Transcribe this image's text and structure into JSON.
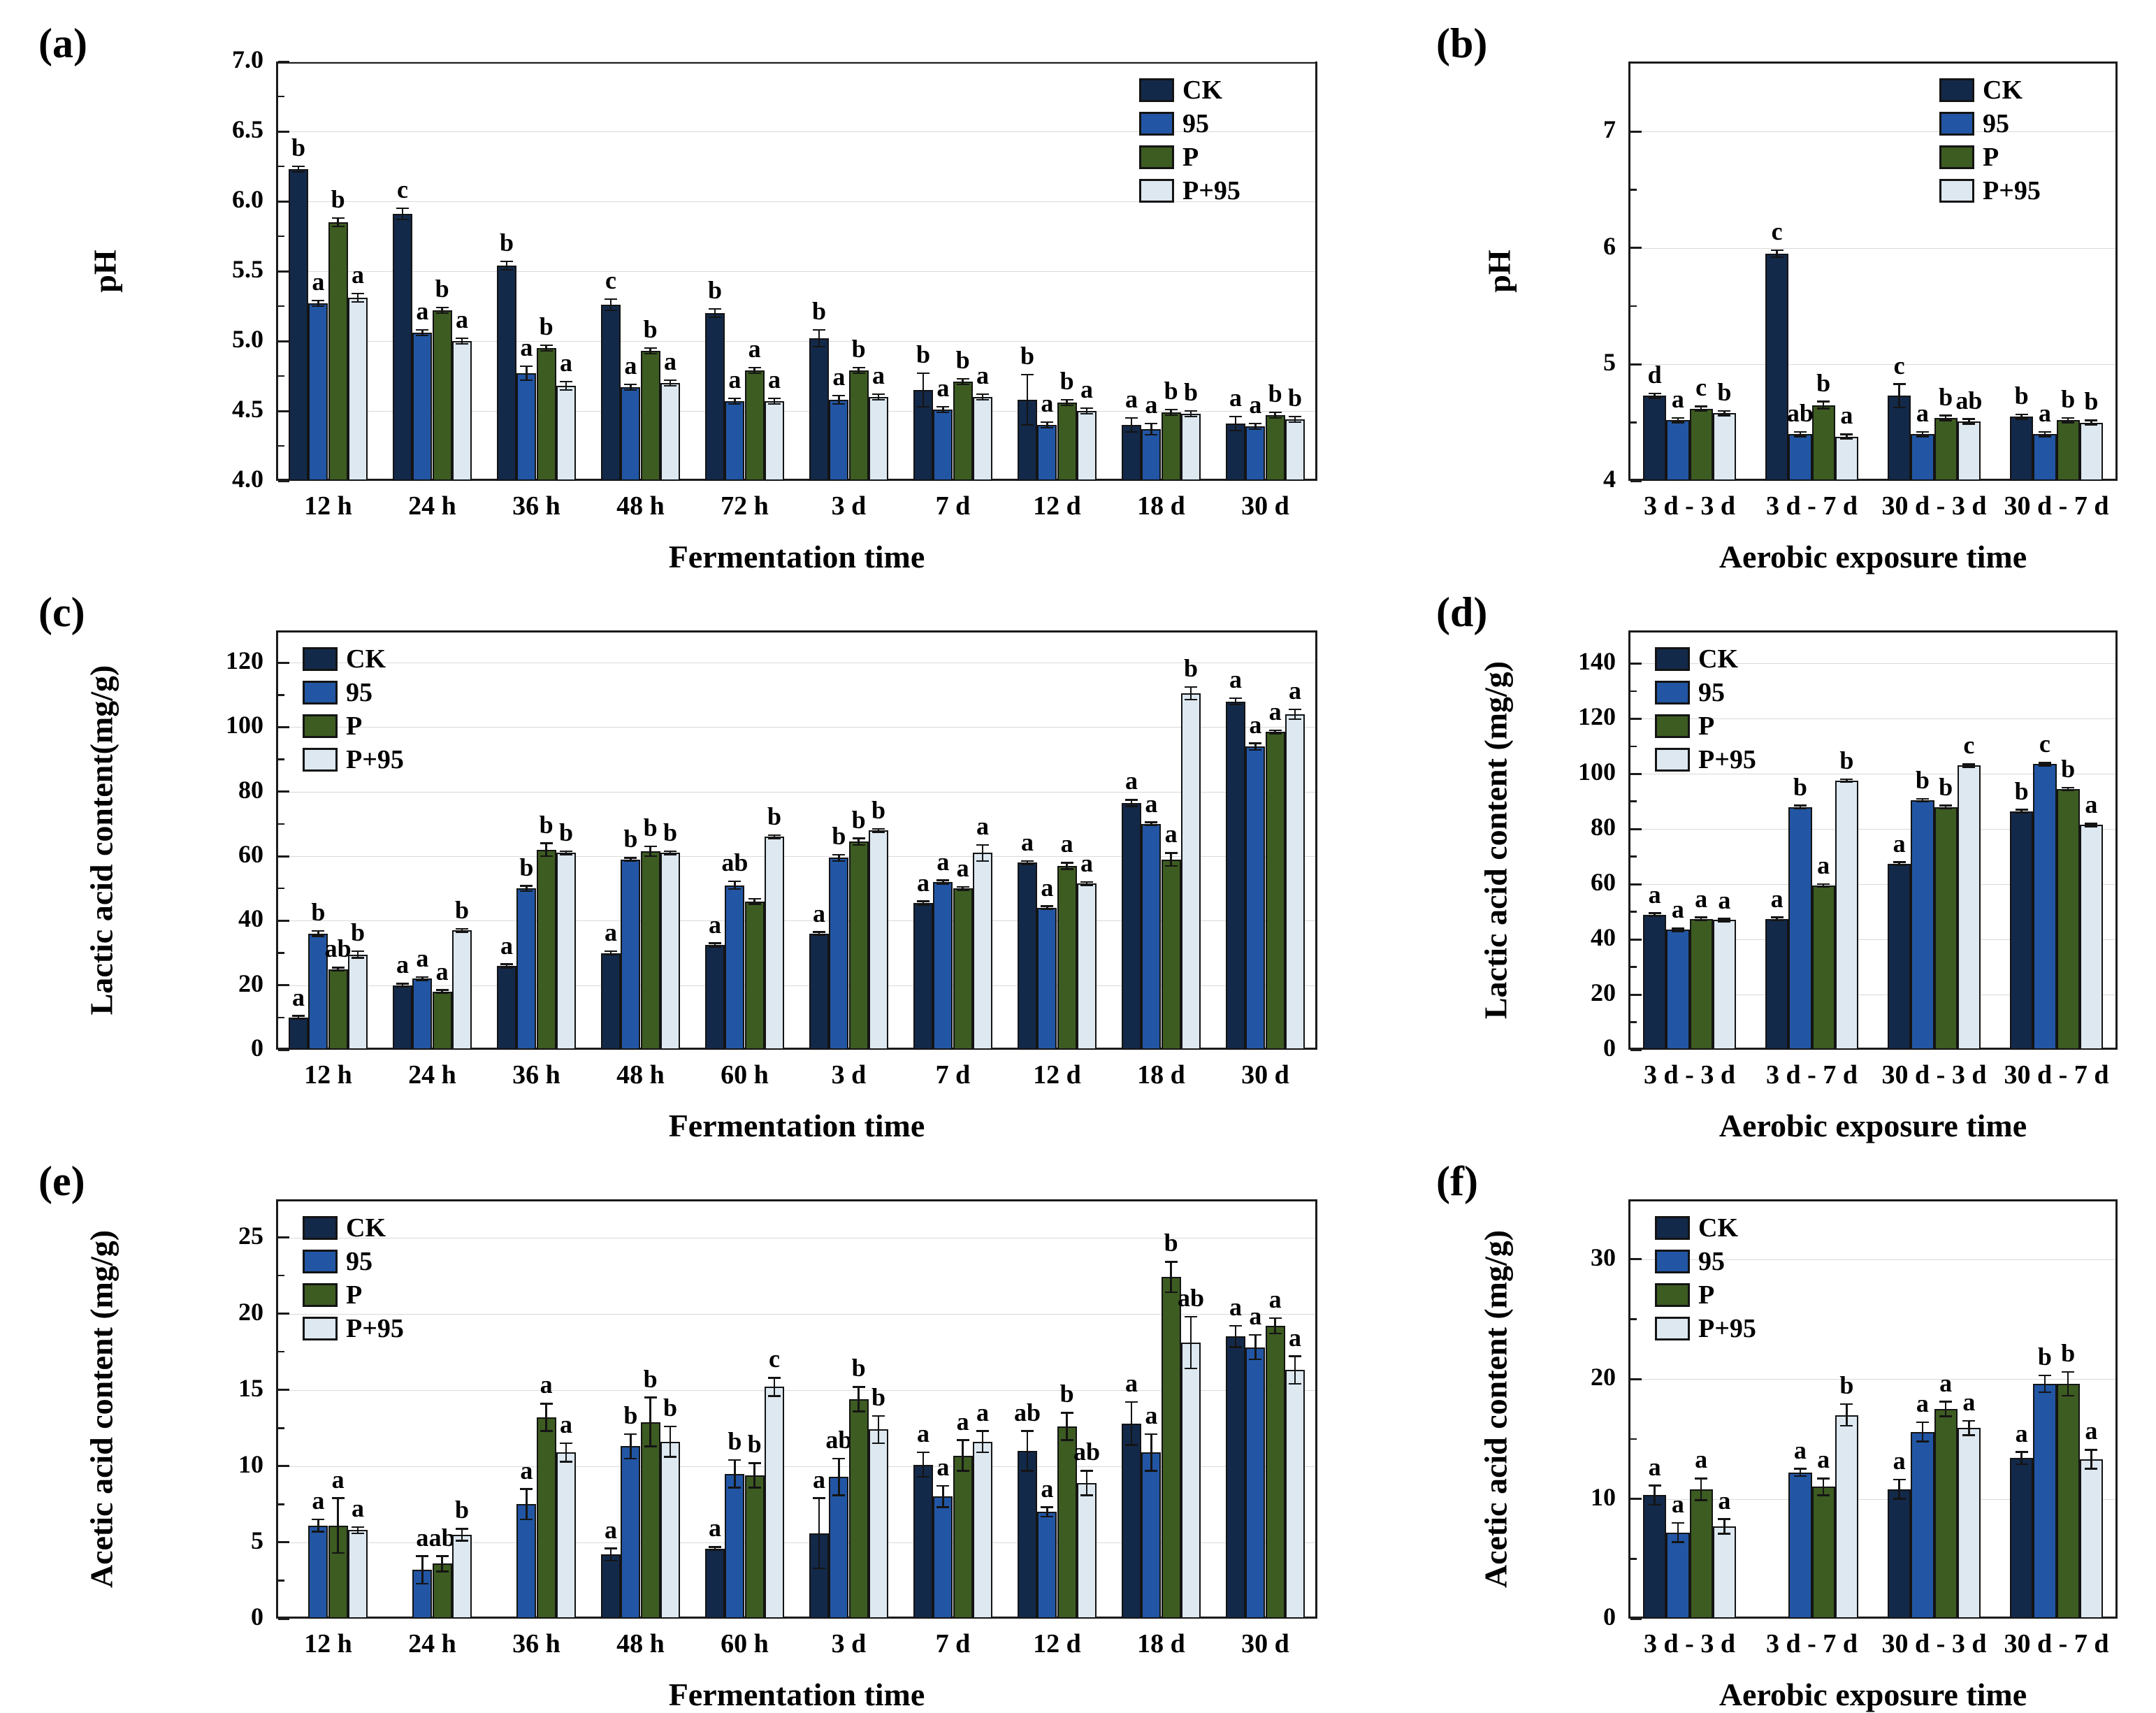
{
  "series_colors": {
    "CK": "#13294a",
    "95": "#2256a4",
    "P": "#3d5c21",
    "P+95": "#dde8f1"
  },
  "chart_data": [
    {
      "id": "a",
      "panel_label": "(a)",
      "type": "bar",
      "title": "",
      "xlabel": "Fermentation time",
      "ylabel": "pH",
      "categories": [
        "12 h",
        "24 h",
        "36 h",
        "48 h",
        "72 h",
        "3 d",
        "7 d",
        "12 d",
        "18 d",
        "30 d"
      ],
      "ylim": [
        4.0,
        7.0
      ],
      "yticks": [
        4.0,
        4.5,
        5.0,
        5.5,
        6.0,
        6.5,
        7.0
      ],
      "ytick_decimals": 1,
      "grid": true,
      "legend_position": "top-right",
      "series": [
        {
          "name": "CK",
          "values": [
            6.23,
            5.91,
            5.54,
            5.26,
            5.2,
            5.02,
            4.65,
            4.58,
            4.4,
            4.41
          ],
          "err": [
            0.02,
            0.04,
            0.03,
            0.04,
            0.03,
            0.06,
            0.12,
            0.18,
            0.05,
            0.05
          ],
          "sig": [
            "b",
            "c",
            "b",
            "c",
            "b",
            "b",
            "b",
            "b",
            "a",
            "a"
          ]
        },
        {
          "name": "95",
          "values": [
            5.27,
            5.06,
            4.77,
            4.67,
            4.57,
            4.58,
            4.51,
            4.4,
            4.37,
            4.39
          ],
          "err": [
            0.02,
            0.02,
            0.05,
            0.02,
            0.02,
            0.03,
            0.02,
            0.02,
            0.04,
            0.02
          ],
          "sig": [
            "a",
            "a",
            "a",
            "a",
            "a",
            "a",
            "a",
            "a",
            "a",
            "a"
          ]
        },
        {
          "name": "P",
          "values": [
            5.85,
            5.22,
            4.95,
            4.93,
            4.79,
            4.79,
            4.71,
            4.56,
            4.49,
            4.47
          ],
          "err": [
            0.03,
            0.02,
            0.02,
            0.02,
            0.02,
            0.02,
            0.02,
            0.02,
            0.02,
            0.02
          ],
          "sig": [
            "b",
            "b",
            "b",
            "b",
            "a",
            "b",
            "b",
            "b",
            "b",
            "b"
          ]
        },
        {
          "name": "P+95",
          "values": [
            5.31,
            5.0,
            4.68,
            4.7,
            4.57,
            4.6,
            4.6,
            4.5,
            4.48,
            4.44
          ],
          "err": [
            0.03,
            0.02,
            0.03,
            0.02,
            0.02,
            0.02,
            0.02,
            0.02,
            0.02,
            0.02
          ],
          "sig": [
            "a",
            "a",
            "a",
            "a",
            "a",
            "a",
            "a",
            "a",
            "b",
            "b"
          ]
        }
      ]
    },
    {
      "id": "b",
      "panel_label": "(b)",
      "type": "bar",
      "title": "",
      "xlabel": "Aerobic exposure time",
      "ylabel": "pH",
      "categories": [
        "3 d - 3 d",
        "3 d - 7 d",
        "30 d - 3 d",
        "30 d - 7 d"
      ],
      "ylim": [
        4.0,
        7.6
      ],
      "yticks": [
        4,
        5,
        6,
        7
      ],
      "ytick_decimals": 0,
      "grid": true,
      "legend_position": "top-right",
      "series": [
        {
          "name": "CK",
          "values": [
            4.73,
            5.95,
            4.73,
            4.55
          ],
          "err": [
            0.02,
            0.03,
            0.1,
            0.02
          ],
          "sig": [
            "d",
            "c",
            "c",
            "b"
          ]
        },
        {
          "name": "95",
          "values": [
            4.52,
            4.4,
            4.4,
            4.4
          ],
          "err": [
            0.02,
            0.02,
            0.02,
            0.02
          ],
          "sig": [
            "a",
            "ab",
            "a",
            "a"
          ]
        },
        {
          "name": "P",
          "values": [
            4.62,
            4.65,
            4.54,
            4.52
          ],
          "err": [
            0.02,
            0.03,
            0.02,
            0.02
          ],
          "sig": [
            "c",
            "b",
            "b",
            "b"
          ]
        },
        {
          "name": "P+95",
          "values": [
            4.58,
            4.38,
            4.51,
            4.5
          ],
          "err": [
            0.02,
            0.02,
            0.02,
            0.02
          ],
          "sig": [
            "b",
            "a",
            "ab",
            "b"
          ]
        }
      ]
    },
    {
      "id": "c",
      "panel_label": "(c)",
      "type": "bar",
      "title": "",
      "xlabel": "Fermentation time",
      "ylabel": "Lactic acid content(mg/g)",
      "categories": [
        "12 h",
        "24 h",
        "36 h",
        "48 h",
        "60 h",
        "3 d",
        "7 d",
        "12 d",
        "18 d",
        "30 d"
      ],
      "ylim": [
        0,
        130
      ],
      "yticks": [
        0,
        20,
        40,
        60,
        80,
        100,
        120
      ],
      "ytick_decimals": 0,
      "grid": true,
      "legend_position": "top-left",
      "series": [
        {
          "name": "CK",
          "values": [
            10,
            20,
            26,
            30,
            32.5,
            36,
            45.5,
            58,
            76.5,
            108
          ],
          "err": [
            0.5,
            0.5,
            0.5,
            0.5,
            0.5,
            0.5,
            0.5,
            0.5,
            1,
            1
          ],
          "sig": [
            "a",
            "a",
            "a",
            "a",
            "a",
            "a",
            "a",
            "a",
            "a",
            "a"
          ]
        },
        {
          "name": "95",
          "values": [
            36,
            22,
            50,
            59,
            51,
            59.5,
            52,
            44,
            70,
            94
          ],
          "err": [
            0.8,
            0.5,
            0.8,
            0.5,
            1.2,
            1,
            0.5,
            0.5,
            0.5,
            1
          ],
          "sig": [
            "b",
            "a",
            "b",
            "b",
            "ab",
            "b",
            "a",
            "a",
            "a",
            "a"
          ]
        },
        {
          "name": "P",
          "values": [
            25,
            18,
            62,
            61.5,
            46,
            64.5,
            50,
            57,
            59,
            98.5
          ],
          "err": [
            0.5,
            0.5,
            2,
            1.5,
            0.8,
            1,
            0.5,
            1,
            2,
            0.5
          ],
          "sig": [
            "ab",
            "a",
            "b",
            "b",
            "",
            "b",
            "a",
            "a",
            "a",
            "a"
          ]
        },
        {
          "name": "P+95",
          "values": [
            29.5,
            37,
            61,
            61,
            66,
            68,
            61,
            51.5,
            110.5,
            104
          ],
          "err": [
            1,
            0.5,
            0.5,
            0.5,
            0.5,
            0.5,
            2.5,
            0.5,
            2,
            1.5
          ],
          "sig": [
            "b",
            "b",
            "b",
            "b",
            "b",
            "b",
            "a",
            "a",
            "b",
            "a"
          ]
        }
      ]
    },
    {
      "id": "d",
      "panel_label": "(d)",
      "type": "bar",
      "title": "",
      "xlabel": "Aerobic exposure time",
      "ylabel": "Lactic acid content (mg/g)",
      "categories": [
        "3 d - 3 d",
        "3 d - 7 d",
        "30 d - 3 d",
        "30 d - 7 d"
      ],
      "ylim": [
        0,
        152
      ],
      "yticks": [
        0,
        20,
        40,
        60,
        80,
        100,
        120,
        140
      ],
      "ytick_decimals": 0,
      "grid": true,
      "legend_position": "top-left",
      "series": [
        {
          "name": "CK",
          "values": [
            49,
            47.5,
            67.5,
            86.5
          ],
          "err": [
            0.5,
            0.5,
            0.5,
            0.5
          ],
          "sig": [
            "a",
            "a",
            "a",
            "b"
          ]
        },
        {
          "name": "95",
          "values": [
            43.5,
            88,
            90.5,
            103.5
          ],
          "err": [
            0.5,
            0.5,
            0.5,
            0.5
          ],
          "sig": [
            "a",
            "b",
            "b",
            "c"
          ]
        },
        {
          "name": "P",
          "values": [
            47.5,
            59.5,
            88,
            94.5
          ],
          "err": [
            0.5,
            0.5,
            0.5,
            0.5
          ],
          "sig": [
            "a",
            "a",
            "b",
            "b"
          ]
        },
        {
          "name": "P+95",
          "values": [
            47,
            97.5,
            103,
            81.5
          ],
          "err": [
            0.5,
            0.5,
            0.5,
            0.5
          ],
          "sig": [
            "a",
            "b",
            "c",
            "a"
          ]
        }
      ]
    },
    {
      "id": "e",
      "panel_label": "(e)",
      "type": "bar",
      "title": "",
      "xlabel": "Fermentation time",
      "ylabel": "Acetic acid content (mg/g)",
      "categories": [
        "12 h",
        "24 h",
        "36 h",
        "48 h",
        "60 h",
        "3 d",
        "7 d",
        "12 d",
        "18 d",
        "30 d"
      ],
      "ylim": [
        0,
        27.5
      ],
      "yticks": [
        0,
        5,
        10,
        15,
        20,
        25
      ],
      "ytick_decimals": 0,
      "grid": true,
      "legend_position": "top-left",
      "series": [
        {
          "name": "CK",
          "values": [
            null,
            null,
            null,
            4.2,
            4.6,
            5.6,
            10.1,
            11.0,
            12.8,
            18.5
          ],
          "err": [
            0,
            0,
            0,
            0.4,
            0.1,
            2.3,
            0.8,
            1.3,
            1.4,
            0.7
          ],
          "sig": [
            "",
            "",
            "",
            "a",
            "a",
            "a",
            "a",
            "ab",
            "a",
            "a"
          ]
        },
        {
          "name": "95",
          "values": [
            6.1,
            3.2,
            7.5,
            11.3,
            9.5,
            9.3,
            8.0,
            7.0,
            10.9,
            17.8
          ],
          "err": [
            0.4,
            0.9,
            1.0,
            0.8,
            0.9,
            1.2,
            0.7,
            0.3,
            1.2,
            0.8
          ],
          "sig": [
            "a",
            "a",
            "a",
            "b",
            "b",
            "ab",
            "a",
            "a",
            "a",
            "a"
          ]
        },
        {
          "name": "P",
          "values": [
            6.1,
            3.6,
            13.2,
            12.9,
            9.4,
            14.4,
            10.7,
            12.6,
            22.4,
            19.2
          ],
          "err": [
            1.8,
            0.5,
            0.9,
            1.6,
            0.8,
            0.8,
            1.0,
            0.9,
            1.0,
            0.5
          ],
          "sig": [
            "a",
            "ab",
            "a",
            "b",
            "b",
            "b",
            "a",
            "b",
            "b",
            "a"
          ]
        },
        {
          "name": "P+95",
          "values": [
            5.8,
            5.5,
            10.9,
            11.6,
            15.2,
            12.4,
            11.6,
            8.9,
            18.1,
            16.3
          ],
          "err": [
            0.2,
            0.4,
            0.6,
            1.0,
            0.6,
            0.9,
            0.7,
            0.8,
            1.7,
            0.9
          ],
          "sig": [
            "a",
            "b",
            "a",
            "b",
            "c",
            "b",
            "a",
            "ab",
            "ab",
            "a"
          ]
        }
      ]
    },
    {
      "id": "f",
      "panel_label": "(f)",
      "type": "bar",
      "title": "",
      "xlabel": "Aerobic exposure time",
      "ylabel": "Acetic acid content (mg/g)",
      "categories": [
        "3 d - 3 d",
        "3 d - 7 d",
        "30 d - 3 d",
        "30 d - 7 d"
      ],
      "ylim": [
        0,
        35
      ],
      "yticks": [
        0,
        10,
        20,
        30
      ],
      "ytick_decimals": 0,
      "grid": true,
      "legend_position": "top-left",
      "series": [
        {
          "name": "CK",
          "values": [
            10.3,
            null,
            10.8,
            13.4
          ],
          "err": [
            0.8,
            0,
            0.8,
            0.5
          ],
          "sig": [
            "a",
            "",
            "a",
            "a"
          ]
        },
        {
          "name": "95",
          "values": [
            7.2,
            12.2,
            15.6,
            19.6
          ],
          "err": [
            0.8,
            0.3,
            0.8,
            0.7
          ],
          "sig": [
            "a",
            "a",
            "a",
            "b"
          ]
        },
        {
          "name": "P",
          "values": [
            10.8,
            11.0,
            17.5,
            19.6
          ],
          "err": [
            0.9,
            0.7,
            0.6,
            1.0
          ],
          "sig": [
            "a",
            "a",
            "a",
            "b"
          ]
        },
        {
          "name": "P+95",
          "values": [
            7.7,
            17.0,
            15.9,
            13.3
          ],
          "err": [
            0.6,
            0.9,
            0.6,
            0.8
          ],
          "sig": [
            "a",
            "b",
            "a",
            "a"
          ]
        }
      ]
    }
  ]
}
